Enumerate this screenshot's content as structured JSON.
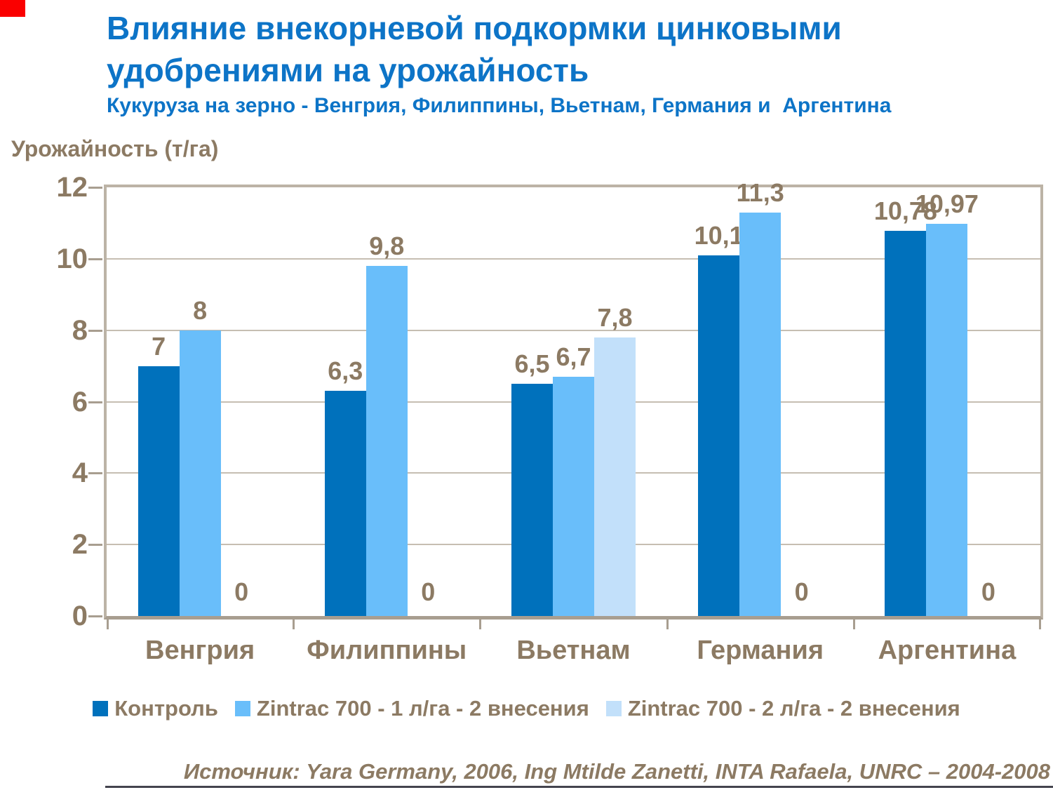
{
  "colors": {
    "title_blue": "#0D74C7",
    "text_brown": "#8C7A63",
    "corner_red": "#FA0000",
    "plot_border": "#BCB3A6",
    "axis_line": "#A89E90",
    "gridline": "#C6BEB2"
  },
  "header": {
    "title_line1": "Влияние внекорневой подкормки цинковыми",
    "title_line2": "удобрениями на урожайность",
    "subtitle": "Кукуруза на зерно - Венгрия, Филиппины, Вьетнам, Германия и  Аргентина"
  },
  "chart_data": {
    "type": "bar",
    "title": "Влияние внекорневой подкормки цинковыми удобрениями на урожайность",
    "subtitle": "Кукуруза на зерно - Венгрия, Филиппины, Вьетнам, Германия и Аргентина",
    "ylabel": "Урожайность (т/га)",
    "ylim": [
      0,
      12
    ],
    "yticks": [
      0,
      2,
      4,
      6,
      8,
      10,
      12
    ],
    "grid": true,
    "legend_position": "bottom",
    "categories": [
      "Венгрия",
      "Филиппины",
      "Вьетнам",
      "Германия",
      "Аргентина"
    ],
    "series": [
      {
        "name": "Контроль",
        "color": "#0071BC",
        "values": [
          7,
          6.3,
          6.5,
          10.1,
          10.78
        ],
        "labels": [
          "7",
          "6,3",
          "6,5",
          "10,1",
          "10,78"
        ]
      },
      {
        "name": "Zintrac 700 - 1 л/га - 2 внесения",
        "color": "#69BEFA",
        "values": [
          8,
          9.8,
          6.7,
          11.3,
          10.97
        ],
        "labels": [
          "8",
          "9,8",
          "6,7",
          "11,3",
          "10,97"
        ]
      },
      {
        "name": "Zintrac 700 - 2 л/га - 2 внесения",
        "color": "#C2E0FA",
        "values": [
          0,
          0,
          7.8,
          0,
          0
        ],
        "labels": [
          "0",
          "0",
          "7,8",
          "0",
          "0"
        ]
      }
    ]
  },
  "source": {
    "text": "Источник: Yara Germany, 2006, Ing Mtilde Zanetti, INTA Rafaela, UNRC – 2004-2008"
  }
}
